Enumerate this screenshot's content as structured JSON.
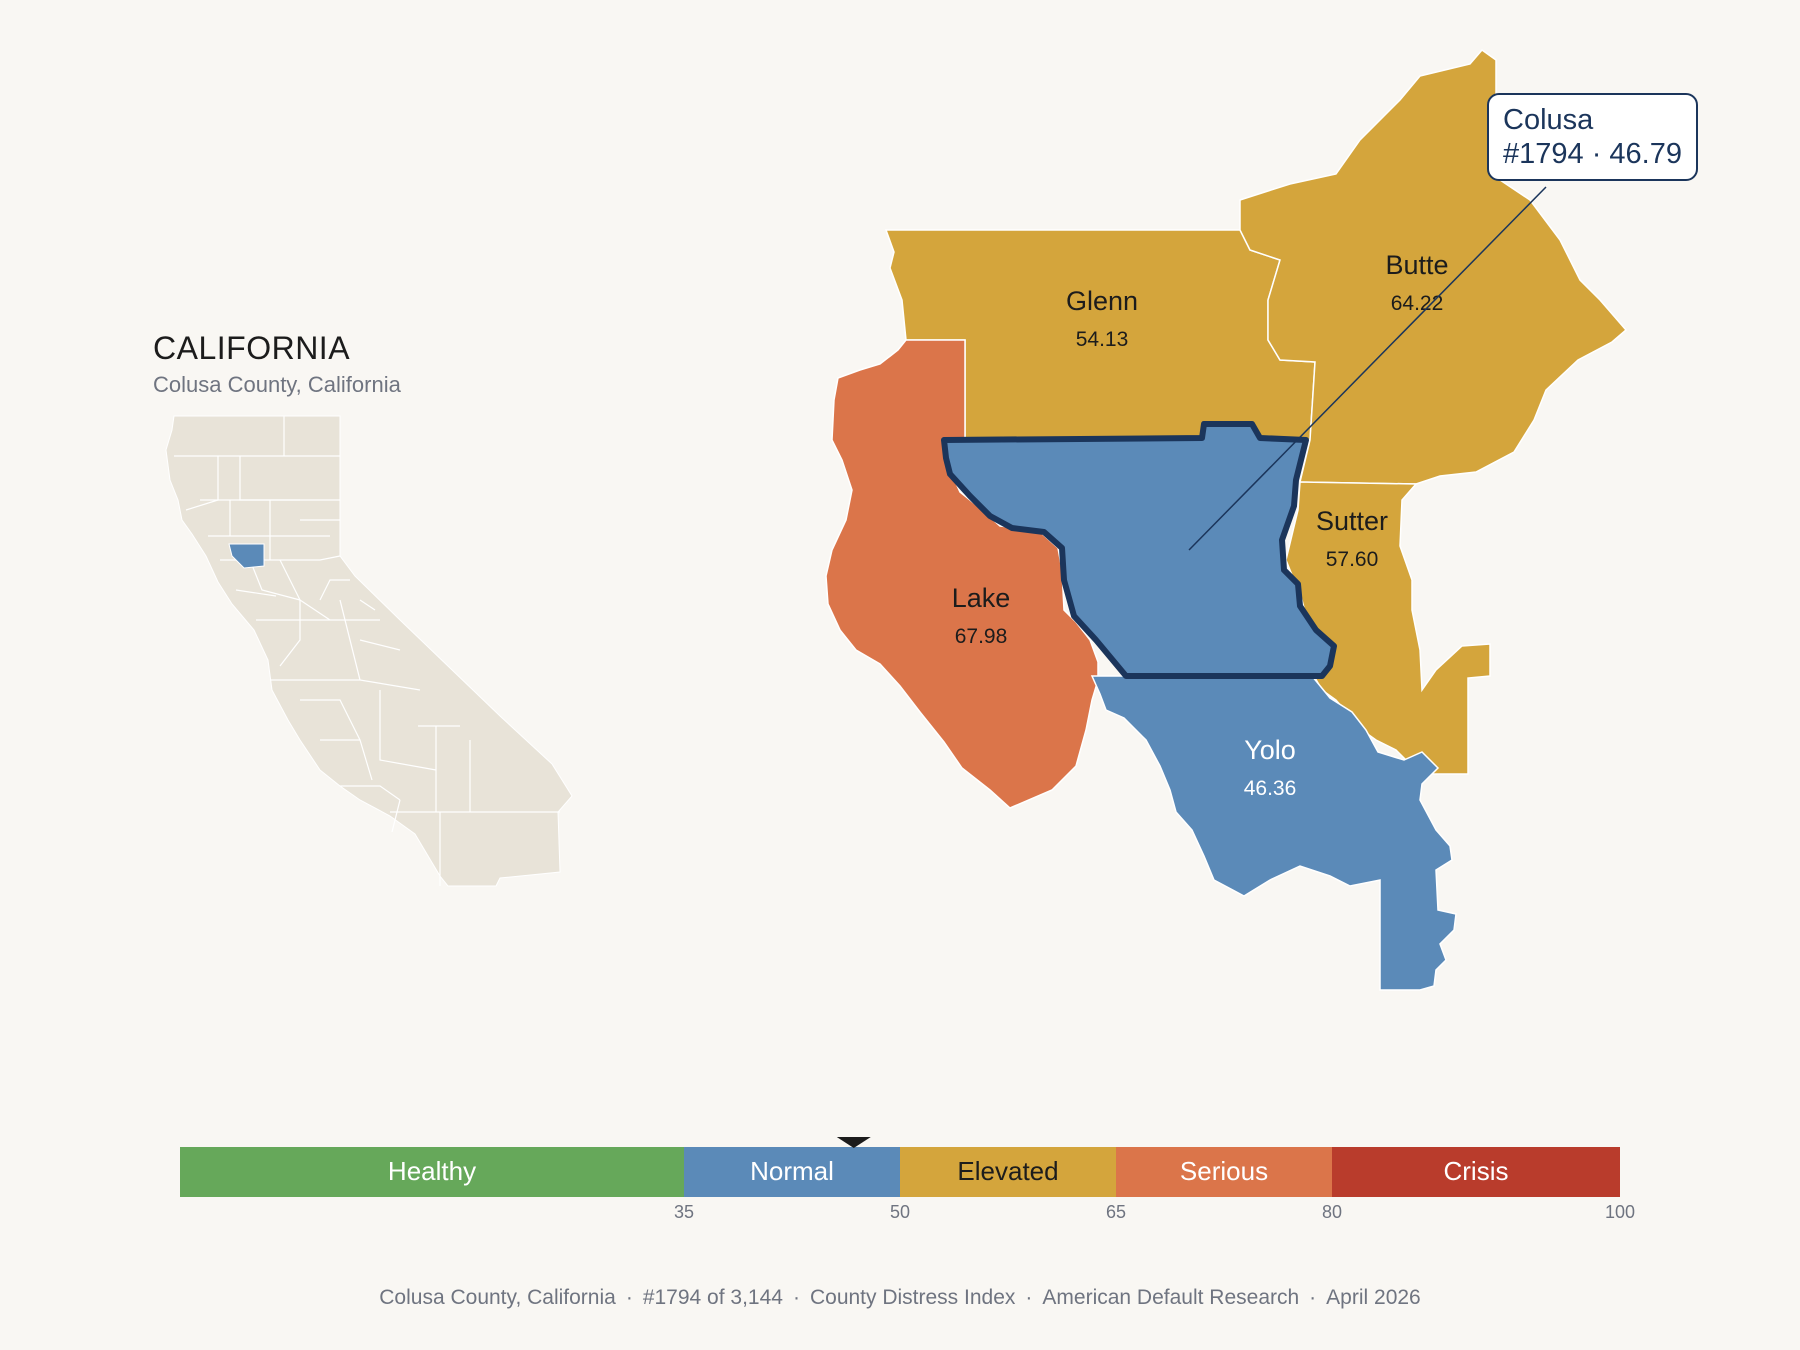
{
  "locator": {
    "state_name": "CALIFORNIA",
    "subtitle": "Colusa County, California"
  },
  "map": {
    "focus_county": "Colusa",
    "counties": [
      {
        "name": "Glenn",
        "value": "54.13",
        "category": "Elevated"
      },
      {
        "name": "Butte",
        "value": "64.22",
        "category": "Elevated"
      },
      {
        "name": "Lake",
        "value": "67.98",
        "category": "Serious"
      },
      {
        "name": "Sutter",
        "value": "57.60",
        "category": "Elevated"
      },
      {
        "name": "Yolo",
        "value": "46.36",
        "category": "Normal"
      },
      {
        "name": "Colusa",
        "value": "46.79",
        "category": "Normal"
      }
    ]
  },
  "callout": {
    "county": "Colusa",
    "line2": "#1794 · 46.79"
  },
  "scale": {
    "min": 0,
    "max": 100,
    "marker_value": 46.79,
    "bands": [
      {
        "label": "Healthy",
        "from": 0,
        "to": 35,
        "color": "#66a85a"
      },
      {
        "label": "Normal",
        "from": 35,
        "to": 50,
        "color": "#5b8ab8"
      },
      {
        "label": "Elevated",
        "from": 50,
        "to": 65,
        "color": "#d4a53c"
      },
      {
        "label": "Serious",
        "from": 65,
        "to": 80,
        "color": "#db754a"
      },
      {
        "label": "Crisis",
        "from": 80,
        "to": 100,
        "color": "#b93c2c"
      }
    ],
    "ticks": [
      "35",
      "50",
      "65",
      "80",
      "100"
    ]
  },
  "colors": {
    "Healthy": "#66a85a",
    "Normal": "#5b8ab8",
    "Elevated": "#d4a53c",
    "Serious": "#db754a",
    "Crisis": "#b93c2c",
    "focus_outline": "#1b355b",
    "state_fill": "#e8e3d8"
  },
  "footer": {
    "items": [
      "Colusa County, California",
      "#1794 of 3,144",
      "County Distress Index",
      "American Default Research",
      "April 2026"
    ]
  }
}
